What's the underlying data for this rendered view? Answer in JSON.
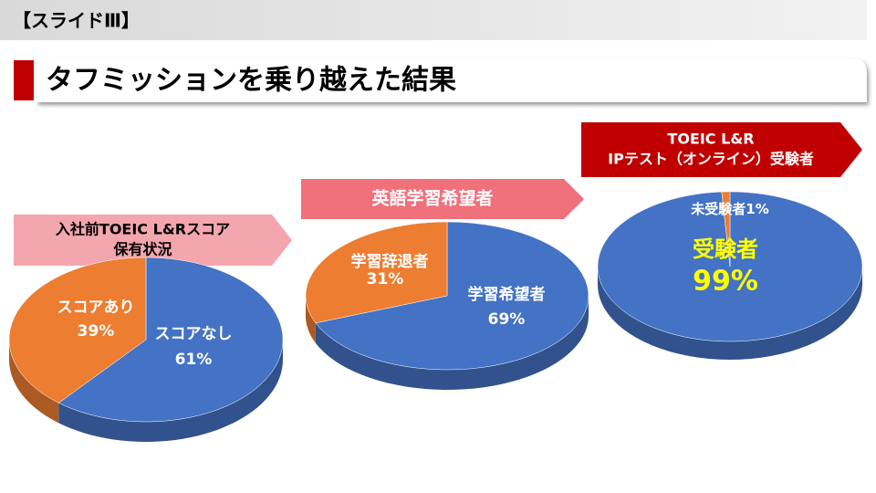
{
  "slide": {
    "label": "【スライドⅢ】",
    "title": "タフミッションを乗り越えた結果"
  },
  "chart_data": [
    {
      "type": "pie",
      "title": [
        "入社前TOEIC L&Rスコア",
        "保有状況"
      ],
      "categories": [
        "スコアなし",
        "スコアあり"
      ],
      "values": [
        61,
        39
      ],
      "value_labels": [
        "61%",
        "39%"
      ],
      "colors": [
        "#4472c4",
        "#ed7d31"
      ]
    },
    {
      "type": "pie",
      "title": [
        "英語学習希望者"
      ],
      "categories": [
        "学習希望者",
        "学習辞退者"
      ],
      "values": [
        69,
        31
      ],
      "value_labels": [
        "69%",
        "31%"
      ],
      "colors": [
        "#4472c4",
        "#ed7d31"
      ]
    },
    {
      "type": "pie",
      "title": [
        "TOEIC L&R",
        "IPテスト（オンライン）受験者"
      ],
      "categories": [
        "受験者",
        "未受験者"
      ],
      "values": [
        99,
        1
      ],
      "value_labels": [
        "99%",
        "1%"
      ],
      "colors": [
        "#4472c4",
        "#ed7d31"
      ]
    }
  ]
}
